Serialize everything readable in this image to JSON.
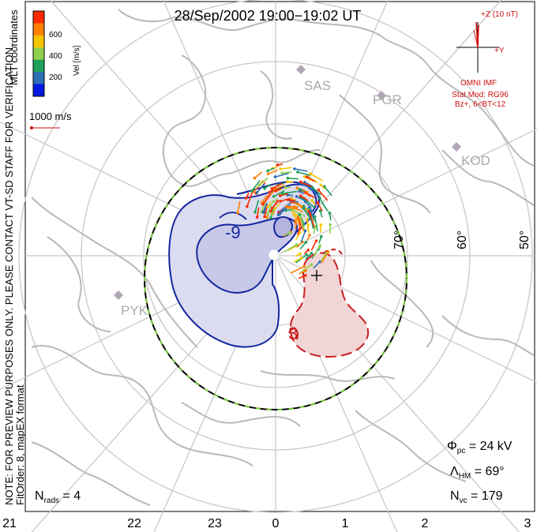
{
  "title": "28/Sep/2002  19:00−19:02  UT",
  "colorbar": {
    "label": "Vel [m/s]",
    "ticks": [
      "600",
      "400",
      "200"
    ],
    "colors": [
      "#ff2a00",
      "#ff7f00",
      "#f5c400",
      "#8fd14f",
      "#1fa05a",
      "#2c6fb5",
      "#0018e0"
    ]
  },
  "coords_label": "MLT coordinates",
  "scale_vector": "1000 m/s",
  "imf": {
    "z_label": "+Z (10 nT)",
    "y_label": "+Y",
    "source": "OMNI IMF",
    "model": "Stat Mod: RG96",
    "condition": "Bz+, 6<BT<12"
  },
  "stations": [
    "SAS",
    "PGR",
    "KOD",
    "PYK"
  ],
  "lat_labels": [
    "70°",
    "60°",
    "50°"
  ],
  "contour_labels": [
    "-9",
    "3"
  ],
  "mlt_labels": [
    "21",
    "22",
    "23",
    "0",
    "1",
    "2",
    "3"
  ],
  "note": "NOTE: FOR PREVIEW PURPOSES ONLY. PLEASE CONTACT VT-SD STAFF FOR VERIFICATION.",
  "fit_order": "FitOrder: 8, mapEX format",
  "stats": {
    "phi_sym": "Φ",
    "phi_sub": "pc",
    "phi_val": " = 24 kV",
    "lambda_sym": "Λ",
    "lambda_sub": "HM",
    "lambda_val": " = 69°",
    "nvc_sym": "N",
    "nvc_sub": "vc",
    "nvc_val": " = 179",
    "nrads_sym": "N",
    "nrads_sub": "rads",
    "nrads_val": " = 4"
  },
  "colors": {
    "negative_cell": "#1428a0",
    "negative_fill": "#dcdcf0",
    "positive_cell": "#c81e1e",
    "positive_fill": "#f2d6d6",
    "hm_boundary_dash": "#7ccf3c",
    "annotation_red": "#d01010",
    "grid": "#c8c8c8"
  }
}
